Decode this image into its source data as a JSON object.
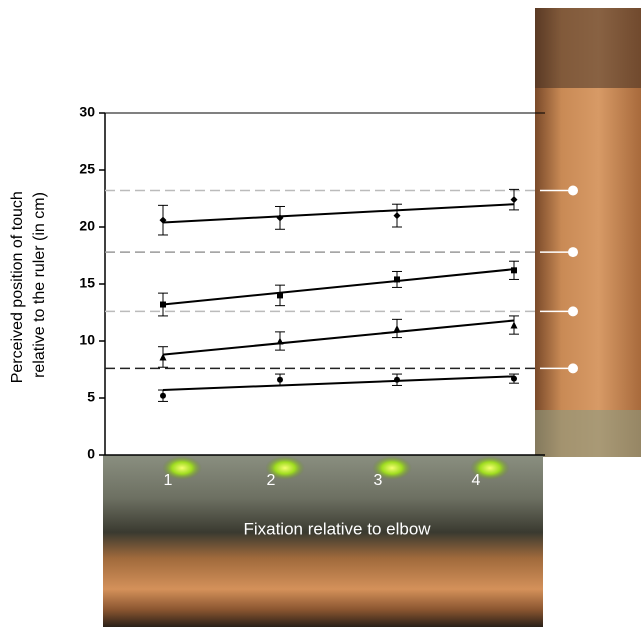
{
  "chart_data": {
    "type": "line",
    "y_label": [
      "Perceived position of touch",
      "relative to the ruler (in cm)"
    ],
    "x_label": "Fixation relative to elbow",
    "categories": [
      "1",
      "2",
      "3",
      "4"
    ],
    "ylim": [
      0,
      30
    ],
    "yticks": [
      0,
      5,
      10,
      15,
      20,
      25,
      30
    ],
    "series": [
      {
        "color": "#000000",
        "marker": "diamond",
        "values": [
          20.6,
          20.8,
          21.0,
          22.4
        ],
        "errors": [
          1.3,
          1.0,
          1.0,
          0.9
        ],
        "fit": [
          20.4,
          22.0
        ]
      },
      {
        "color": "#000000",
        "marker": "square",
        "values": [
          13.2,
          14.0,
          15.4,
          16.2
        ],
        "errors": [
          1.0,
          0.9,
          0.7,
          0.8
        ],
        "fit": [
          13.2,
          16.3
        ]
      },
      {
        "color": "#000000",
        "marker": "triangle",
        "values": [
          8.6,
          10.0,
          11.1,
          11.4
        ],
        "errors": [
          0.9,
          0.8,
          0.8,
          0.8
        ],
        "fit": [
          8.8,
          11.8
        ]
      },
      {
        "color": "#000000",
        "marker": "circle",
        "values": [
          5.2,
          6.6,
          6.6,
          6.7
        ],
        "errors": [
          0.5,
          0.5,
          0.5,
          0.4
        ],
        "fit": [
          5.7,
          6.9
        ]
      }
    ],
    "reference_lines": [
      {
        "value": 23.2,
        "color": "#bbbbbb"
      },
      {
        "value": 17.8,
        "color": "#999999"
      },
      {
        "value": 12.6,
        "color": "#bbbbbb"
      },
      {
        "value": 7.6,
        "color": "#222222"
      }
    ]
  }
}
